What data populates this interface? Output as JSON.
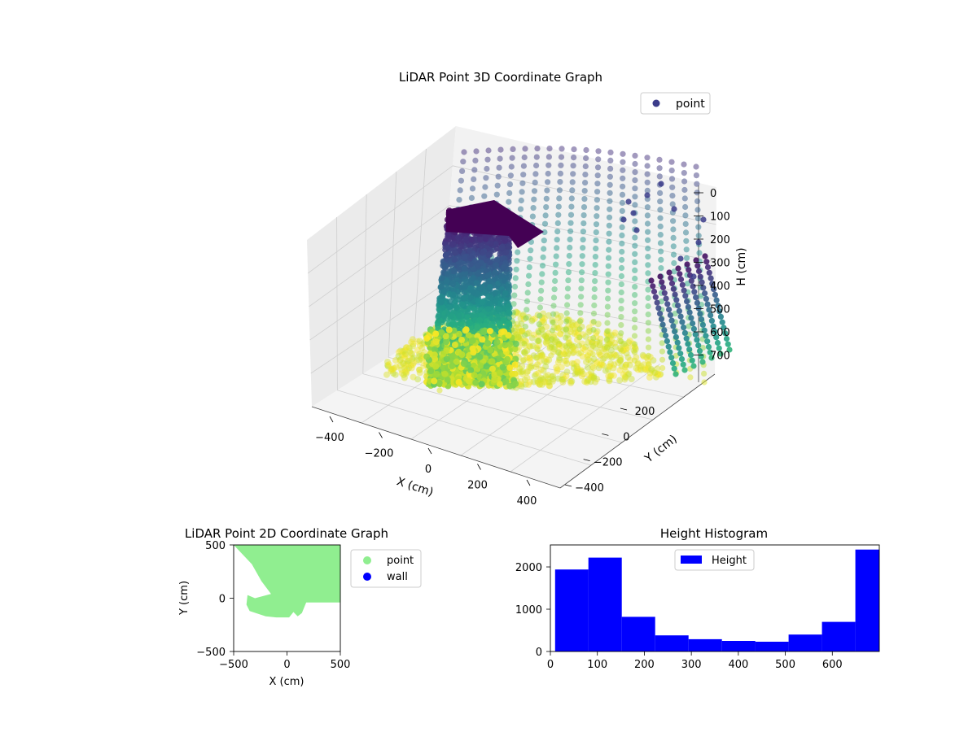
{
  "figure": {
    "background": "#ffffff"
  },
  "chart_data": [
    {
      "type": "scatter",
      "projection": "3d",
      "title": "LiDAR Point 3D Coordinate Graph",
      "xlabel": "X (cm)",
      "ylabel": "Y (cm)",
      "zlabel": "H (cm)",
      "x_ticks": [
        "−400",
        "−200",
        "0",
        "200",
        "400"
      ],
      "y_ticks": [
        "200",
        "0",
        "−200",
        "−400"
      ],
      "z_ticks": [
        "0",
        "100",
        "200",
        "300",
        "400",
        "500",
        "600",
        "700"
      ],
      "xlim": [
        -500,
        500
      ],
      "ylim": [
        -500,
        500
      ],
      "zlim": [
        0,
        700
      ],
      "colormap": "viridis",
      "legend": {
        "entries": [
          "point"
        ],
        "position": "top-right",
        "marker_color": "#3b3c8a"
      },
      "grid": true,
      "point_alpha": 0.6
    },
    {
      "type": "scatter",
      "title": "LiDAR Point 2D Coordinate Graph",
      "xlabel": "X (cm)",
      "ylabel": "Y (cm)",
      "x_ticks": [
        "−500",
        "0",
        "500"
      ],
      "y_ticks": [
        "500",
        "0",
        "−500"
      ],
      "xlim": [
        -500,
        500
      ],
      "ylim": [
        -500,
        500
      ],
      "series": [
        {
          "name": "point",
          "color": "#90ee90"
        },
        {
          "name": "wall",
          "color": "#0000ff"
        }
      ],
      "region_outline": [
        [
          -500,
          500
        ],
        [
          500,
          500
        ],
        [
          500,
          -40
        ],
        [
          180,
          -40
        ],
        [
          140,
          -140
        ],
        [
          100,
          -170
        ],
        [
          60,
          -130
        ],
        [
          20,
          -180
        ],
        [
          -100,
          -180
        ],
        [
          -200,
          -170
        ],
        [
          -350,
          -120
        ],
        [
          -380,
          -60
        ],
        [
          -370,
          30
        ],
        [
          -300,
          0
        ],
        [
          -150,
          40
        ],
        [
          -240,
          160
        ],
        [
          -330,
          320
        ],
        [
          -500,
          500
        ]
      ],
      "legend": {
        "position": "outside-right"
      }
    },
    {
      "type": "bar",
      "title": "Height Histogram",
      "xlabel": "",
      "ylabel": "",
      "x_ticks": [
        "0",
        "100",
        "200",
        "300",
        "400",
        "500",
        "600"
      ],
      "y_ticks": [
        "0",
        "1000",
        "2000"
      ],
      "xlim": [
        0,
        700
      ],
      "ylim": [
        0,
        2520
      ],
      "bins": [
        [
          10,
          81,
          1940
        ],
        [
          81,
          152,
          2220
        ],
        [
          152,
          223,
          820
        ],
        [
          223,
          294,
          380
        ],
        [
          294,
          365,
          290
        ],
        [
          365,
          436,
          250
        ],
        [
          436,
          507,
          230
        ],
        [
          507,
          578,
          400
        ],
        [
          578,
          649,
          700
        ],
        [
          649,
          720,
          2410
        ]
      ],
      "color": "#0000ff",
      "legend": {
        "entries": [
          "Height"
        ],
        "position": "top-center"
      }
    }
  ]
}
